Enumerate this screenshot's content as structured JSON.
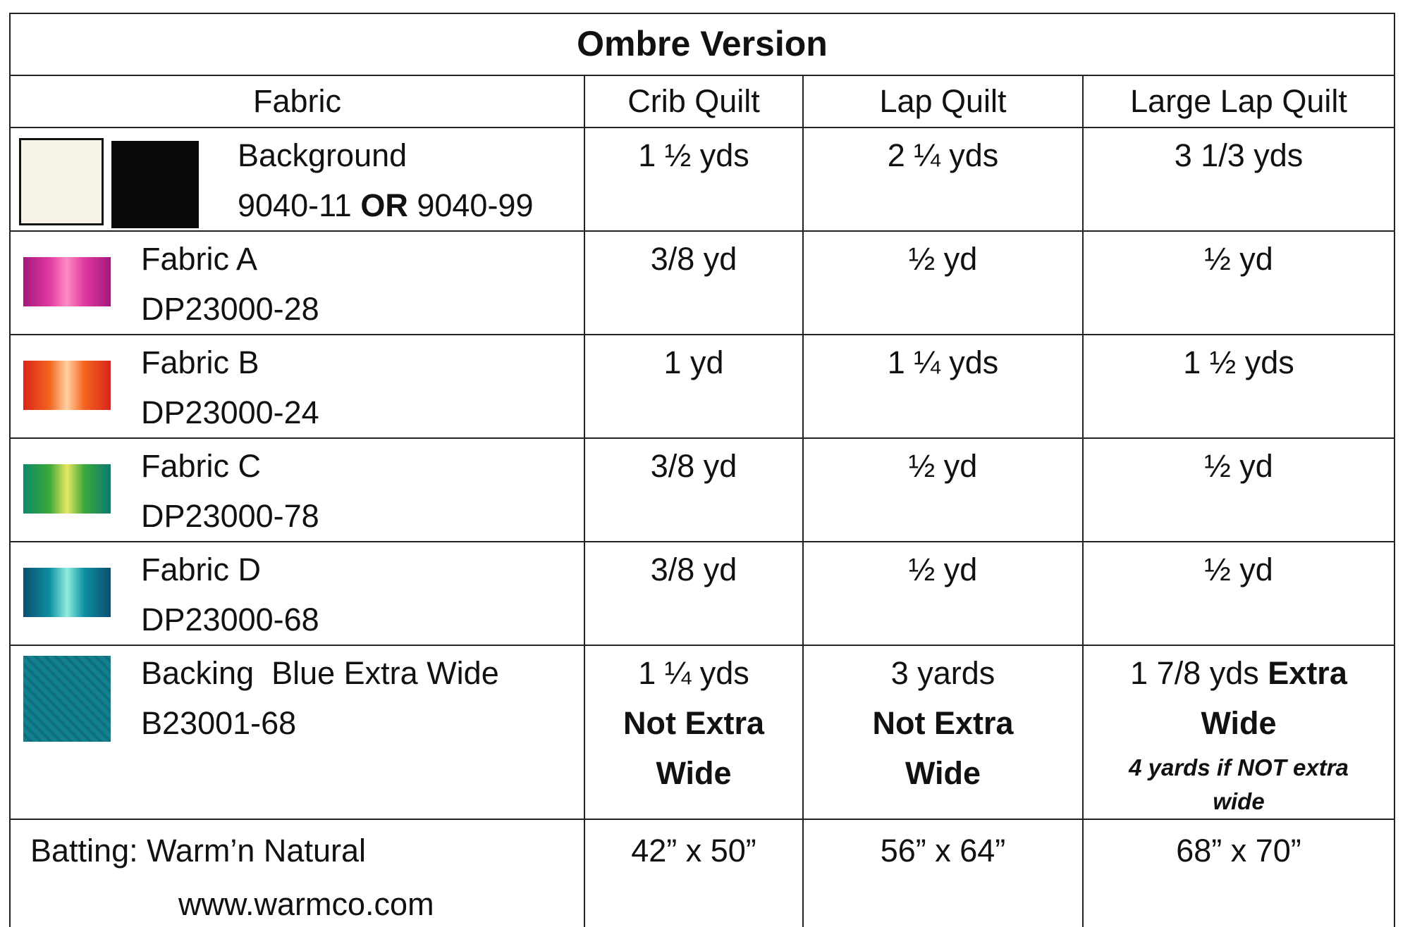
{
  "title": "Ombre Version",
  "table": {
    "header": [
      "Fabric",
      "Crib Quilt",
      "Lap Quilt",
      "Large Lap Quilt"
    ],
    "rows": [
      {
        "fabric": "Background",
        "code": [
          "9040-11",
          "OR",
          "9040-99"
        ],
        "crib": "1 ½ yds",
        "lap": "2 ¼ yds",
        "large_lap": "3 1/3 yds"
      },
      {
        "fabric": "Fabric A",
        "code": "DP23000-28",
        "crib": "3/8 yd",
        "lap": "½ yd",
        "large_lap": "½ yd"
      },
      {
        "fabric": "Fabric B",
        "code": "DP23000-24",
        "crib": "1 yd",
        "lap": "1 ¼ yds",
        "large_lap": "1 ½ yds"
      },
      {
        "fabric": "Fabric C",
        "code": "DP23000-78",
        "crib": "3/8 yd",
        "lap": "½ yd",
        "large_lap": "½ yd"
      },
      {
        "fabric": "Fabric D",
        "code": "DP23000-68",
        "crib": "3/8 yd",
        "lap": "½ yd",
        "large_lap": "½ yd"
      },
      {
        "fabric": "Backing  Blue Extra Wide",
        "code": "B23001-68",
        "crib": "1 ¼ yds",
        "crib_note": "Not Extra Wide",
        "lap": "3 yards",
        "lap_note": "Not Extra Wide",
        "large_lap": "1 7/8 yds",
        "large_lap_note": "Extra Wide",
        "large_lap_small": "4 yards if NOT extra wide"
      },
      {
        "fabric": "Batting: Warm’n Natural",
        "code": "www.warmco.com",
        "crib": "42” x 50”",
        "lap": "56” x 64”",
        "large_lap": "68” x 70”"
      }
    ]
  }
}
